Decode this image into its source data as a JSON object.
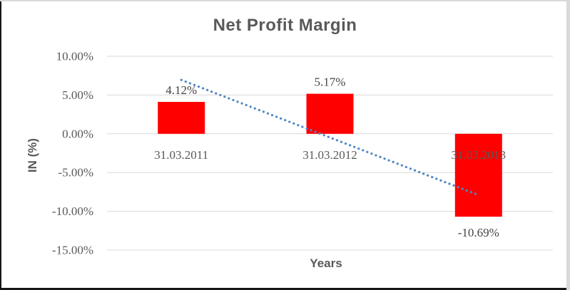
{
  "chart": {
    "title": "Net Profit Margin",
    "y_axis_title": "IN (%)",
    "x_axis_title": "Years"
  },
  "chart_data": {
    "type": "bar",
    "title": "Net Profit Margin",
    "xlabel": "Years",
    "ylabel": "IN (%)",
    "categories": [
      "31.03.2011",
      "31.03.2012",
      "31.03.2013"
    ],
    "series": [
      {
        "name": "Net Profit Margin",
        "color": "#FF0000",
        "values": [
          4.12,
          5.17,
          -10.69
        ]
      }
    ],
    "data_labels": [
      "4.12%",
      "5.17%",
      "-10.69%"
    ],
    "y_ticks": [
      {
        "value": 10,
        "label": "10.00%"
      },
      {
        "value": 5,
        "label": "5.00%"
      },
      {
        "value": 0,
        "label": "0.00%"
      },
      {
        "value": -5,
        "label": "-5.00%"
      },
      {
        "value": -10,
        "label": "-10.00%"
      },
      {
        "value": -15,
        "label": "-15.00%"
      }
    ],
    "ylim": [
      -15,
      10
    ],
    "grid": true,
    "legend": "none",
    "trendline": {
      "type": "linear",
      "style": "dotted",
      "color": "#4E87C6",
      "start_value": 6.95,
      "end_value": -7.9
    }
  },
  "colors": {
    "bar": "#FF0000",
    "gridline": "#D9D9D9",
    "title_text": "#595959",
    "axis_text": "#595959",
    "data_label_text": "#444444",
    "trendline": "#4E87C6",
    "frame_light": "#D9D9D9",
    "frame_dark": "#161616",
    "background": "#FFFFFF"
  }
}
